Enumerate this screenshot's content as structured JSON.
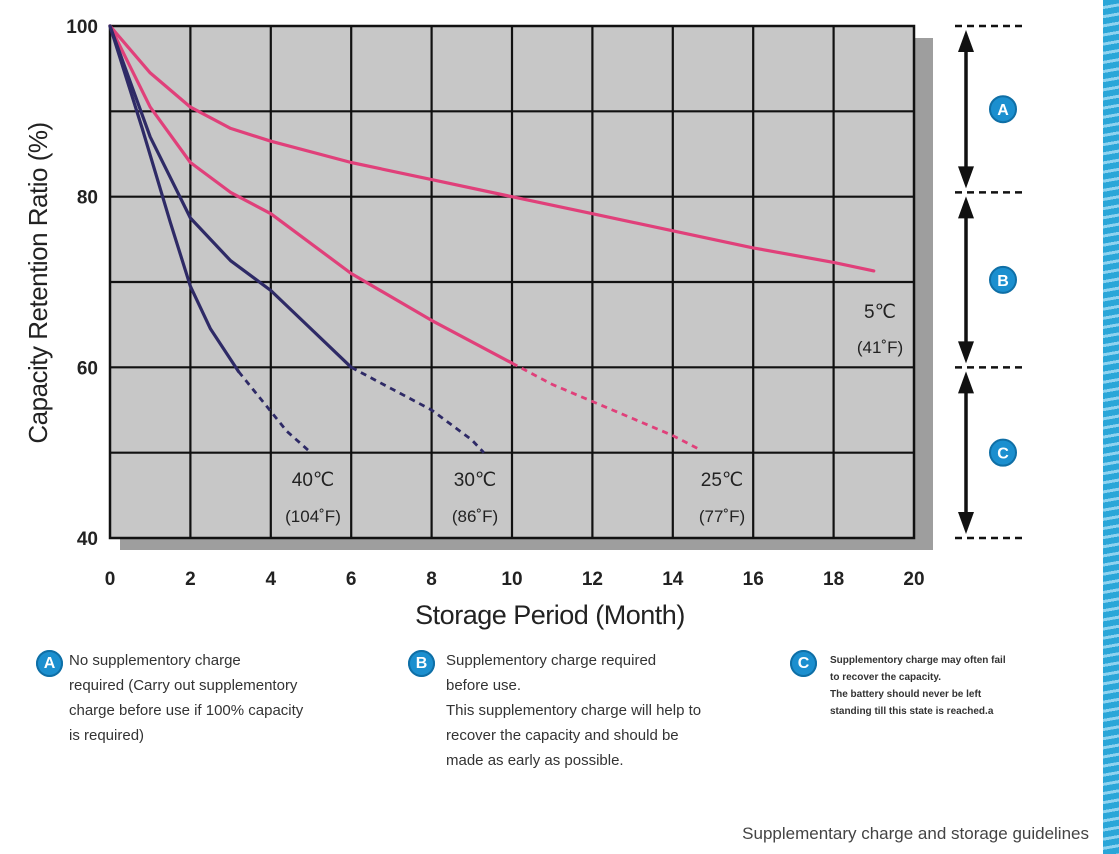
{
  "chart_data": {
    "type": "line",
    "xlabel": "Storage Period (Month)",
    "ylabel": "Capacity Retention Ratio (%)",
    "xlim": [
      0,
      20
    ],
    "ylim": [
      40,
      100
    ],
    "x_ticks": [
      "0",
      "2",
      "4",
      "6",
      "8",
      "10",
      "12",
      "14",
      "16",
      "18",
      "20"
    ],
    "y_ticks": [
      "40",
      "60",
      "80",
      "100"
    ],
    "grid": true,
    "series": [
      {
        "name": "5",
        "label_c": "5℃",
        "label_f": "(41˚F)",
        "color": "#e0407a",
        "solid": [
          [
            0,
            100
          ],
          [
            1,
            94.5
          ],
          [
            2,
            90.5
          ],
          [
            3,
            88
          ],
          [
            4,
            86.5
          ],
          [
            6,
            84
          ],
          [
            8,
            82
          ],
          [
            10,
            80
          ],
          [
            12,
            78
          ],
          [
            14,
            76
          ],
          [
            16,
            74
          ],
          [
            18,
            72.3
          ],
          [
            19,
            71.3
          ]
        ],
        "dashed": []
      },
      {
        "name": "25",
        "label_c": "25℃",
        "label_f": "(77˚F)",
        "color": "#e0407a",
        "solid": [
          [
            0,
            100
          ],
          [
            1,
            90.5
          ],
          [
            2,
            84
          ],
          [
            3,
            80.5
          ],
          [
            4,
            78
          ],
          [
            6,
            71
          ],
          [
            8,
            65.5
          ],
          [
            10,
            60.5
          ]
        ],
        "dashed": [
          [
            10,
            60.5
          ],
          [
            11,
            58
          ],
          [
            12,
            56
          ],
          [
            13,
            54
          ],
          [
            14,
            52
          ],
          [
            14.7,
            50.3
          ]
        ]
      },
      {
        "name": "30",
        "label_c": "30℃",
        "label_f": "(86˚F)",
        "color": "#2e2a66",
        "solid": [
          [
            0,
            100
          ],
          [
            1,
            87
          ],
          [
            2,
            77.5
          ],
          [
            3,
            72.5
          ],
          [
            4,
            69
          ],
          [
            5,
            64.5
          ],
          [
            6,
            60
          ]
        ],
        "dashed": [
          [
            6,
            60
          ],
          [
            7,
            57.5
          ],
          [
            8,
            55
          ],
          [
            9,
            51.5
          ],
          [
            9.3,
            50
          ]
        ]
      },
      {
        "name": "40",
        "label_c": "40℃",
        "label_f": "(104˚F)",
        "color": "#2e2a66",
        "solid": [
          [
            0,
            100
          ],
          [
            0.8,
            88
          ],
          [
            1.5,
            77
          ],
          [
            2,
            69.5
          ],
          [
            2.5,
            64.5
          ],
          [
            3.2,
            59.5
          ]
        ],
        "dashed": [
          [
            3.2,
            59.5
          ],
          [
            3.8,
            56
          ],
          [
            4.4,
            52.5
          ],
          [
            5,
            50
          ]
        ]
      }
    ],
    "zones": [
      {
        "id": "A",
        "from": 100,
        "to": 80.5
      },
      {
        "id": "B",
        "from": 80.5,
        "to": 60
      },
      {
        "id": "C",
        "from": 60,
        "to": 40
      }
    ]
  },
  "legend": [
    {
      "bullet": "A",
      "text": "No supplementory charge\nrequired (Carry out supplementory\ncharge before use if 100% capacity\nis required)"
    },
    {
      "bullet": "B",
      "text": "Supplementory charge required\nbefore use.\nThis supplementory charge will help to\nrecover  the capacity and should be\nmade as early as possible."
    },
    {
      "bullet": "C",
      "text": "Supplementory charge may often fail\nto recover the capacity.\nThe battery should never be left\nstanding till this state is reached.a"
    }
  ],
  "caption": "Supplementary charge and storage  guidelines",
  "colors": {
    "plot_bg": "#c7c7c7",
    "grid": "#111111",
    "accent": "#1b8fcf"
  }
}
